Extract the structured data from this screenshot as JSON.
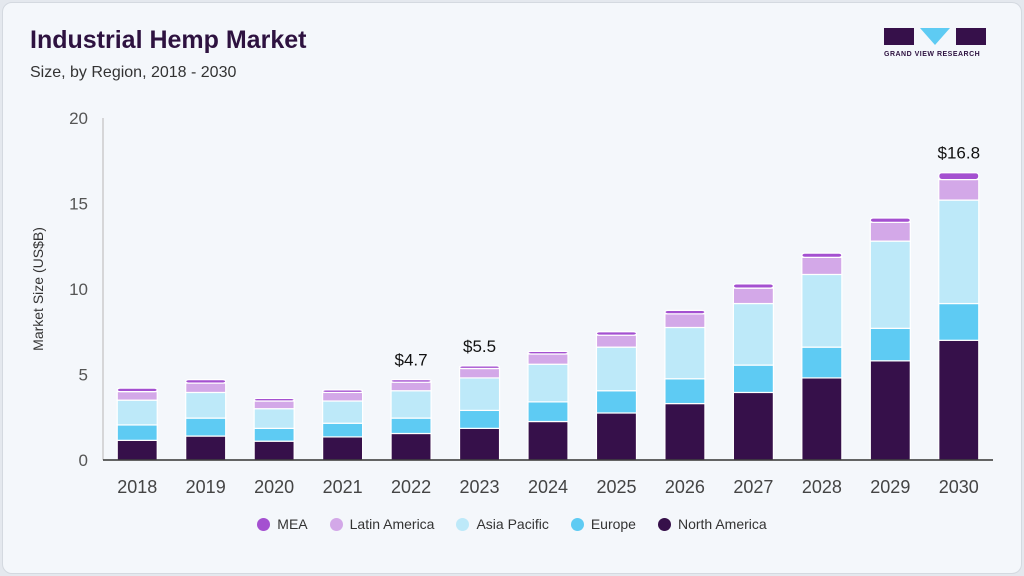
{
  "header": {
    "title": "Industrial Hemp Market",
    "subtitle": "Size, by Region, 2018 - 2030",
    "logo_text": "GRAND VIEW RESEARCH"
  },
  "chart_data": {
    "type": "bar",
    "stacked": true,
    "title": "Industrial Hemp Market",
    "subtitle": "Size, by Region, 2018 - 2030",
    "xlabel": "",
    "ylabel": "Market Size (US$B)",
    "ylim": [
      0,
      20
    ],
    "yticks": [
      0,
      5,
      10,
      15,
      20
    ],
    "categories": [
      "2018",
      "2019",
      "2020",
      "2021",
      "2022",
      "2023",
      "2024",
      "2025",
      "2026",
      "2027",
      "2028",
      "2029",
      "2030"
    ],
    "series": [
      {
        "name": "North America",
        "color": "#36104a",
        "values": [
          1.15,
          1.4,
          1.1,
          1.35,
          1.55,
          1.85,
          2.25,
          2.75,
          3.3,
          3.95,
          4.8,
          5.8,
          7.0
        ]
      },
      {
        "name": "Europe",
        "color": "#5ecbf3",
        "values": [
          0.9,
          1.05,
          0.75,
          0.8,
          0.9,
          1.05,
          1.15,
          1.3,
          1.45,
          1.6,
          1.8,
          1.9,
          2.15
        ]
      },
      {
        "name": "Asia Pacific",
        "color": "#bde9f9",
        "values": [
          1.45,
          1.5,
          1.15,
          1.3,
          1.6,
          1.9,
          2.2,
          2.55,
          3.0,
          3.6,
          4.25,
          5.1,
          6.05
        ]
      },
      {
        "name": "Latin America",
        "color": "#d3a8e8",
        "values": [
          0.5,
          0.55,
          0.45,
          0.5,
          0.5,
          0.55,
          0.6,
          0.7,
          0.8,
          0.9,
          1.0,
          1.1,
          1.2
        ]
      },
      {
        "name": "MEA",
        "color": "#a450d0",
        "values": [
          0.2,
          0.2,
          0.15,
          0.15,
          0.15,
          0.15,
          0.15,
          0.2,
          0.2,
          0.25,
          0.25,
          0.25,
          0.4
        ]
      }
    ],
    "annotations": [
      {
        "category": "2022",
        "label": "$4.7"
      },
      {
        "category": "2023",
        "label": "$5.5"
      },
      {
        "category": "2030",
        "label": "$16.8"
      }
    ],
    "legend": {
      "placement": "bottom",
      "order": [
        "MEA",
        "Latin America",
        "Asia Pacific",
        "Europe",
        "North America"
      ]
    },
    "grid": false
  }
}
